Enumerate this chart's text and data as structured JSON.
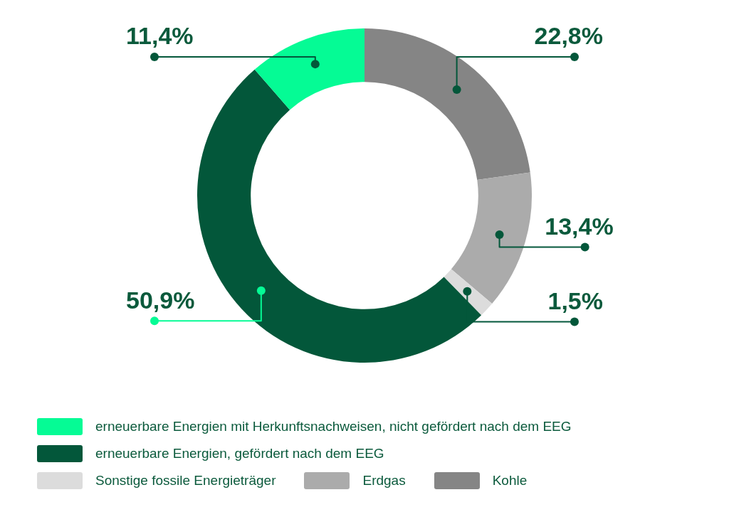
{
  "chart_data": {
    "type": "donut",
    "categories": [
      "erneuerbare Energien mit Herkunftsnachweisen, nicht gefördert nach dem EEG",
      "erneuerbare Energien, gefördert nach dem EEG",
      "Sonstige fossile Energieträger",
      "Erdgas",
      "Kohle"
    ],
    "values": [
      11.4,
      50.9,
      1.5,
      13.4,
      22.8
    ],
    "colors": [
      "#05fb95",
      "#03573a",
      "#dcdcdc",
      "#ababab",
      "#858585"
    ],
    "value_labels": [
      "11,4%",
      "50,9%",
      "1,5%",
      "13,4%",
      "22,8%"
    ],
    "legend": "bottom"
  }
}
